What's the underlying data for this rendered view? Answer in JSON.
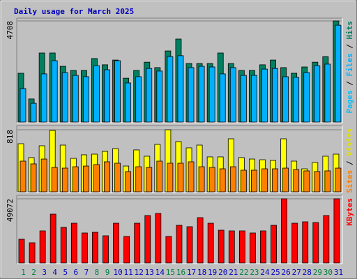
{
  "chart_data": [
    {
      "type": "bar",
      "title": "Daily usage for March 2025",
      "ylim": [
        0,
        4708
      ],
      "yticks": [
        4708
      ],
      "separator": " / ",
      "legend_extra": {
        "name": "Pages",
        "color": "#00c0ff"
      },
      "series": [
        {
          "name": "Hits",
          "color": "#008060",
          "values": [
            2290,
            1100,
            3225,
            3225,
            2610,
            2420,
            2420,
            2970,
            2680,
            2900,
            2060,
            2420,
            2800,
            2550,
            3320,
            3870,
            2740,
            2740,
            2740,
            3225,
            2740,
            2420,
            2420,
            2680,
            2900,
            2550,
            2290,
            2580,
            2800,
            3060,
            4708
          ]
        },
        {
          "name": "Files",
          "color": "#00b0ff",
          "values": [
            1580,
            900,
            2260,
            2870,
            2320,
            2190,
            2130,
            2640,
            2450,
            2870,
            1840,
            2130,
            2510,
            2390,
            3060,
            3100,
            2550,
            2610,
            2580,
            2260,
            2550,
            2190,
            2190,
            2480,
            2510,
            2130,
            2100,
            2320,
            2640,
            2710,
            4510
          ]
        }
      ]
    },
    {
      "type": "bar",
      "ylim": [
        0,
        818
      ],
      "yticks": [
        818
      ],
      "separator": " / ",
      "series": [
        {
          "name": "Visits",
          "color": "#ffff00",
          "values": [
            636,
            455,
            609,
            809,
            618,
            445,
            491,
            500,
            536,
            573,
            345,
            555,
            473,
            627,
            818,
            664,
            582,
            618,
            464,
            464,
            700,
            455,
            436,
            427,
            418,
            700,
            409,
            309,
            391,
            473,
            500
          ]
        },
        {
          "name": "Sites",
          "color": "#ff8000",
          "values": [
            409,
            373,
            436,
            327,
            318,
            336,
            345,
            364,
            400,
            382,
            273,
            336,
            327,
            409,
            382,
            382,
            400,
            336,
            327,
            309,
            336,
            291,
            291,
            309,
            309,
            318,
            300,
            282,
            273,
            282,
            318
          ]
        }
      ]
    },
    {
      "type": "bar",
      "ylim": [
        0,
        49072
      ],
      "yticks": [
        49072
      ],
      "categories": [
        "1",
        "2",
        "3",
        "4",
        "5",
        "6",
        "7",
        "8",
        "9",
        "10",
        "11",
        "12",
        "13",
        "14",
        "15",
        "16",
        "17",
        "18",
        "19",
        "20",
        "21",
        "22",
        "23",
        "24",
        "25",
        "26",
        "27",
        "28",
        "29",
        "30",
        "31"
      ],
      "category_colors": [
        "#008040",
        "#008040",
        "#0000c0",
        "#0000c0",
        "#0000c0",
        "#0000c0",
        "#0000c0",
        "#008040",
        "#008040",
        "#0000c0",
        "#0000c0",
        "#0000c0",
        "#0000c0",
        "#0000c0",
        "#008040",
        "#008040",
        "#0000c0",
        "#0000c0",
        "#0000c0",
        "#0000c0",
        "#0000c0",
        "#008040",
        "#008040",
        "#0000c0",
        "#0000c0",
        "#0000c0",
        "#0000c0",
        "#0000c0",
        "#008040",
        "#008040",
        "#0000c0"
      ],
      "series": [
        {
          "name": "KBytes",
          "color": "#ff0000",
          "values": [
            18470,
            15830,
            24800,
            37460,
            27440,
            30600,
            23220,
            23740,
            21110,
            30600,
            20580,
            30600,
            36410,
            37990,
            20580,
            29020,
            27970,
            34830,
            30600,
            25330,
            24800,
            24800,
            23220,
            24800,
            29020,
            49072,
            30600,
            31660,
            31130,
            36410,
            49072
          ]
        }
      ]
    }
  ]
}
